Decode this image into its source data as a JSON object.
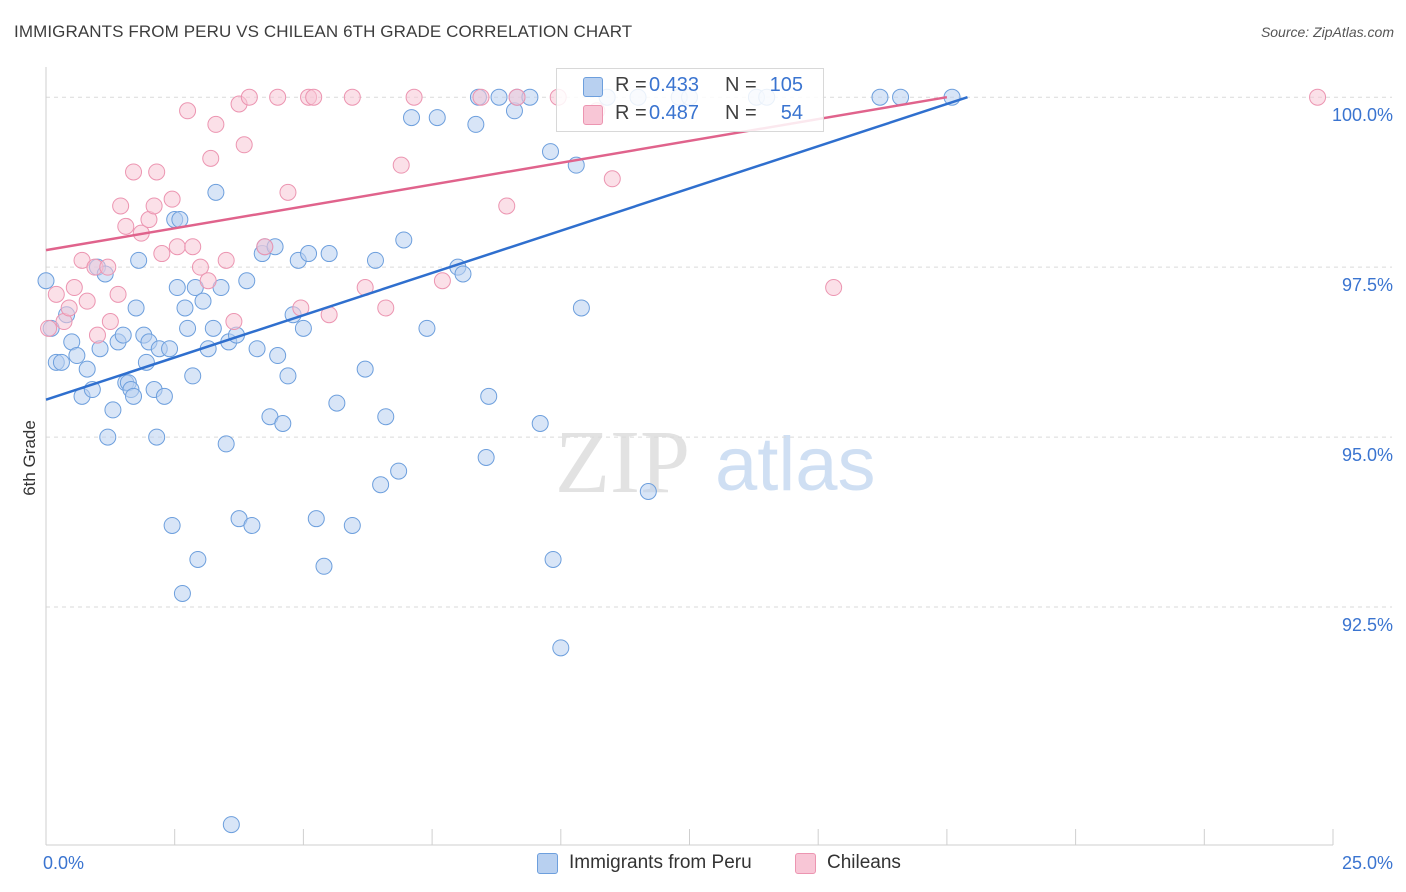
{
  "title": "IMMIGRANTS FROM PERU VS CHILEAN 6TH GRADE CORRELATION CHART",
  "source": "Source: ZipAtlas.com",
  "watermark": {
    "zip": "ZIP",
    "atlas": "atlas"
  },
  "legend": {
    "series1": {
      "r_label": "R =",
      "r_value": "0.433",
      "n_label": "N =",
      "n_value": "105"
    },
    "series2": {
      "r_label": "R =",
      "r_value": "0.487",
      "n_label": "N =",
      "n_value": "54"
    }
  },
  "bottom_legend": {
    "series1": "Immigrants from Peru",
    "series2": "Chileans"
  },
  "colors": {
    "blue_fill": "#b8d0f0",
    "blue_stroke": "#6d9fdd",
    "blue_line": "#2f6fce",
    "pink_fill": "#f8c6d6",
    "pink_stroke": "#ec95b1",
    "pink_line": "#e0638c",
    "axis_label": "#3a74d0",
    "grid": "#dadada"
  },
  "chart_data": {
    "type": "scatter",
    "title": "IMMIGRANTS FROM PERU VS CHILEAN 6TH GRADE CORRELATION CHART",
    "xlabel": "",
    "ylabel": "6th Grade",
    "xlim": [
      0.0,
      25.0
    ],
    "ylim": [
      89.0,
      100.4
    ],
    "x_tick_labels": [
      "0.0%",
      "25.0%"
    ],
    "y_ticks": [
      92.5,
      95.0,
      97.5,
      100.0
    ],
    "y_tick_labels": [
      "92.5%",
      "95.0%",
      "97.5%",
      "100.0%"
    ],
    "series": [
      {
        "name": "Immigrants from Peru",
        "R": 0.433,
        "N": 105,
        "trend": {
          "x": [
            0.0,
            17.9
          ],
          "y": [
            95.55,
            100.0
          ]
        },
        "points": [
          [
            0.0,
            97.3
          ],
          [
            0.1,
            96.6
          ],
          [
            0.2,
            96.1
          ],
          [
            0.3,
            96.1
          ],
          [
            0.4,
            96.8
          ],
          [
            0.5,
            96.4
          ],
          [
            0.6,
            96.2
          ],
          [
            0.7,
            95.6
          ],
          [
            0.8,
            96.0
          ],
          [
            0.9,
            95.7
          ],
          [
            1.0,
            97.5
          ],
          [
            1.05,
            96.3
          ],
          [
            1.15,
            97.4
          ],
          [
            1.2,
            95.0
          ],
          [
            1.3,
            95.4
          ],
          [
            1.4,
            96.4
          ],
          [
            1.5,
            96.5
          ],
          [
            1.55,
            95.8
          ],
          [
            1.6,
            95.8
          ],
          [
            1.65,
            95.7
          ],
          [
            1.7,
            95.6
          ],
          [
            1.75,
            96.9
          ],
          [
            1.8,
            97.6
          ],
          [
            1.9,
            96.5
          ],
          [
            1.95,
            96.1
          ],
          [
            2.0,
            96.4
          ],
          [
            2.1,
            95.7
          ],
          [
            2.15,
            95.0
          ],
          [
            2.2,
            96.3
          ],
          [
            2.3,
            95.6
          ],
          [
            2.4,
            96.3
          ],
          [
            2.45,
            93.7
          ],
          [
            2.5,
            98.2
          ],
          [
            2.55,
            97.2
          ],
          [
            2.6,
            98.2
          ],
          [
            2.65,
            92.7
          ],
          [
            2.7,
            96.9
          ],
          [
            2.75,
            96.6
          ],
          [
            2.85,
            95.9
          ],
          [
            2.9,
            97.2
          ],
          [
            2.95,
            93.2
          ],
          [
            3.05,
            97.0
          ],
          [
            3.15,
            96.3
          ],
          [
            3.25,
            96.6
          ],
          [
            3.3,
            98.6
          ],
          [
            3.4,
            97.2
          ],
          [
            3.5,
            94.9
          ],
          [
            3.55,
            96.4
          ],
          [
            3.6,
            89.3
          ],
          [
            3.7,
            96.5
          ],
          [
            3.75,
            93.8
          ],
          [
            3.9,
            97.3
          ],
          [
            4.0,
            93.7
          ],
          [
            4.1,
            96.3
          ],
          [
            4.2,
            97.7
          ],
          [
            4.25,
            97.8
          ],
          [
            4.35,
            95.3
          ],
          [
            4.45,
            97.8
          ],
          [
            4.5,
            96.2
          ],
          [
            4.6,
            95.2
          ],
          [
            4.7,
            95.9
          ],
          [
            4.8,
            96.8
          ],
          [
            4.9,
            97.6
          ],
          [
            5.0,
            96.6
          ],
          [
            5.1,
            97.7
          ],
          [
            5.25,
            93.8
          ],
          [
            5.4,
            93.1
          ],
          [
            5.5,
            97.7
          ],
          [
            5.65,
            95.5
          ],
          [
            5.95,
            93.7
          ],
          [
            6.2,
            96.0
          ],
          [
            6.4,
            97.6
          ],
          [
            6.5,
            94.3
          ],
          [
            6.6,
            95.3
          ],
          [
            6.85,
            94.5
          ],
          [
            6.95,
            97.9
          ],
          [
            7.1,
            99.7
          ],
          [
            7.4,
            96.6
          ],
          [
            7.6,
            99.7
          ],
          [
            8.0,
            97.5
          ],
          [
            8.1,
            97.4
          ],
          [
            8.35,
            99.6
          ],
          [
            8.4,
            100.0
          ],
          [
            8.55,
            94.7
          ],
          [
            8.6,
            95.6
          ],
          [
            8.8,
            100.0
          ],
          [
            9.1,
            99.8
          ],
          [
            9.15,
            100.0
          ],
          [
            9.4,
            100.0
          ],
          [
            9.6,
            95.2
          ],
          [
            9.8,
            99.2
          ],
          [
            9.85,
            93.2
          ],
          [
            10.0,
            91.9
          ],
          [
            10.3,
            99.0
          ],
          [
            10.4,
            96.9
          ],
          [
            10.9,
            100.0
          ],
          [
            11.5,
            100.0
          ],
          [
            11.7,
            94.2
          ],
          [
            12.3,
            100.0
          ],
          [
            12.5,
            100.0
          ],
          [
            13.8,
            100.0
          ],
          [
            14.0,
            100.0
          ],
          [
            16.2,
            100.0
          ],
          [
            16.6,
            100.0
          ],
          [
            17.6,
            100.0
          ]
        ]
      },
      {
        "name": "Chileans",
        "R": 0.487,
        "N": 54,
        "trend": {
          "x": [
            0.0,
            17.5
          ],
          "y": [
            97.75,
            100.0
          ]
        },
        "points": [
          [
            0.05,
            96.6
          ],
          [
            0.2,
            97.1
          ],
          [
            0.35,
            96.7
          ],
          [
            0.45,
            96.9
          ],
          [
            0.55,
            97.2
          ],
          [
            0.7,
            97.6
          ],
          [
            0.8,
            97.0
          ],
          [
            0.95,
            97.5
          ],
          [
            1.0,
            96.5
          ],
          [
            1.2,
            97.5
          ],
          [
            1.25,
            96.7
          ],
          [
            1.4,
            97.1
          ],
          [
            1.45,
            98.4
          ],
          [
            1.55,
            98.1
          ],
          [
            1.7,
            98.9
          ],
          [
            1.85,
            98.0
          ],
          [
            2.0,
            98.2
          ],
          [
            2.1,
            98.4
          ],
          [
            2.15,
            98.9
          ],
          [
            2.25,
            97.7
          ],
          [
            2.45,
            98.5
          ],
          [
            2.55,
            97.8
          ],
          [
            2.75,
            99.8
          ],
          [
            2.85,
            97.8
          ],
          [
            3.0,
            97.5
          ],
          [
            3.15,
            97.3
          ],
          [
            3.2,
            99.1
          ],
          [
            3.3,
            99.6
          ],
          [
            3.5,
            97.6
          ],
          [
            3.65,
            96.7
          ],
          [
            3.75,
            99.9
          ],
          [
            3.85,
            99.3
          ],
          [
            3.95,
            100.0
          ],
          [
            4.25,
            97.8
          ],
          [
            4.5,
            100.0
          ],
          [
            4.7,
            98.6
          ],
          [
            4.95,
            96.9
          ],
          [
            5.1,
            100.0
          ],
          [
            5.2,
            100.0
          ],
          [
            5.5,
            96.8
          ],
          [
            5.95,
            100.0
          ],
          [
            6.2,
            97.2
          ],
          [
            6.6,
            96.9
          ],
          [
            6.9,
            99.0
          ],
          [
            7.15,
            100.0
          ],
          [
            7.7,
            97.3
          ],
          [
            8.45,
            100.0
          ],
          [
            8.95,
            98.4
          ],
          [
            9.15,
            100.0
          ],
          [
            9.95,
            100.0
          ],
          [
            10.7,
            99.8
          ],
          [
            11.0,
            98.8
          ],
          [
            15.3,
            97.2
          ],
          [
            24.7,
            100.0
          ]
        ]
      }
    ]
  }
}
